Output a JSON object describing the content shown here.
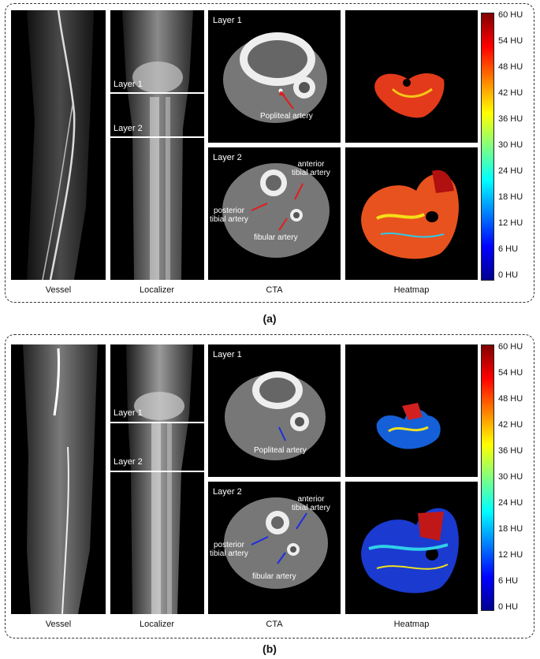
{
  "panels": [
    {
      "id": "a",
      "label": "(a)",
      "captions": {
        "vessel": "Vessel",
        "localizer": "Localizer",
        "cta": "CTA",
        "heatmap": "Heatmap"
      },
      "layer1": "Layer 1",
      "layer2": "Layer 2",
      "cta_layer1_annotation": "Popliteal artery",
      "cta_layer2_annotations": {
        "anterior": "anterior\ntibial artery",
        "posterior": "posterior\ntibial artery",
        "fibular": "fibular artery"
      },
      "arrow_color": "#e31b1b",
      "colorbar_ticks": [
        "60 HU",
        "54 HU",
        "48 HU",
        "42 HU",
        "36 HU",
        "30 HU",
        "24 HU",
        "18 HU",
        "12 HU",
        "6 HU",
        "0 HU"
      ]
    },
    {
      "id": "b",
      "label": "(b)",
      "captions": {
        "vessel": "Vessel",
        "localizer": "Localizer",
        "cta": "CTA",
        "heatmap": "Heatmap"
      },
      "layer1": "Layer 1",
      "layer2": "Layer 2",
      "cta_layer1_annotation": "Popliteal artery",
      "cta_layer2_annotations": {
        "anterior": "anterior\ntibial artery",
        "posterior": "posterior\ntibial artery",
        "fibular": "fibular artery"
      },
      "arrow_color": "#1b2de3",
      "colorbar_ticks": [
        "60 HU",
        "54 HU",
        "48 HU",
        "42 HU",
        "36 HU",
        "30 HU",
        "24 HU",
        "18 HU",
        "12 HU",
        "6 HU",
        "0 HU"
      ]
    }
  ],
  "colorbar": {
    "min_hu": 0,
    "max_hu": 60,
    "colormap": "jet"
  }
}
